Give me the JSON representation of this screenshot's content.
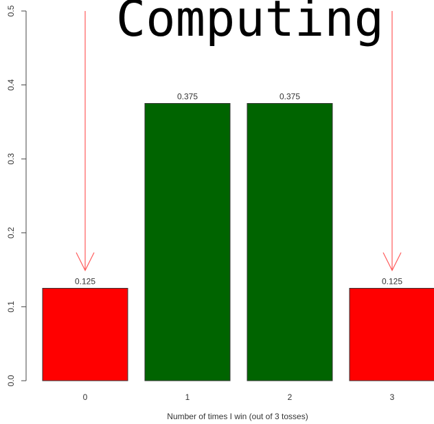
{
  "overlay": {
    "text": "Computing"
  },
  "chart_data": {
    "type": "bar",
    "categories": [
      "0",
      "1",
      "2",
      "3"
    ],
    "values": [
      0.125,
      0.375,
      0.375,
      0.125
    ],
    "data_labels": [
      "0.125",
      "0.375",
      "0.375",
      "0.125"
    ],
    "bar_colors": [
      "#ff0000",
      "#006400",
      "#006400",
      "#ff0000"
    ],
    "title": "",
    "xlabel": "Number of times I win (out of 3 tosses)",
    "ylabel": "",
    "ylim": [
      0,
      0.5
    ],
    "yticks": [
      "0.0",
      "0.1",
      "0.2",
      "0.3",
      "0.4",
      "0.5"
    ],
    "annotations": [
      {
        "type": "arrow",
        "target_category": "0",
        "color": "#ff5a5a"
      },
      {
        "type": "arrow",
        "target_category": "3",
        "color": "#ff5a5a"
      }
    ],
    "grid": false,
    "legend": "none"
  }
}
